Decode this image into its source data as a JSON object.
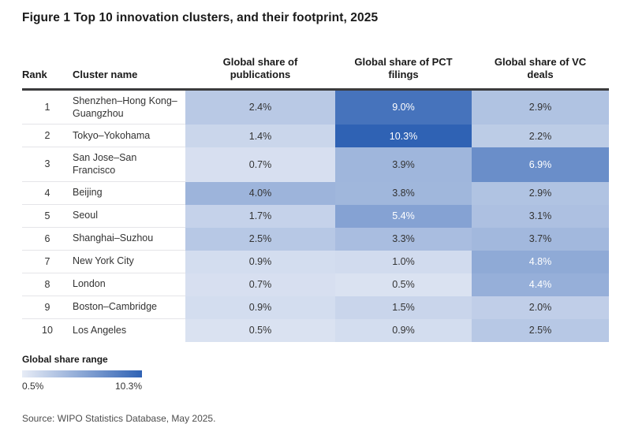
{
  "title": "Figure 1 Top 10 innovation clusters, and their footprint, 2025",
  "legend": {
    "title": "Global share range",
    "min_label": "0.5%",
    "max_label": "10.3%"
  },
  "source": "Source: WIPO Statistics Database, May 2025.",
  "heatmap": {
    "domain": [
      0.5,
      10.3
    ],
    "light_color": "#dae2f1",
    "dark_color": "#2f62b4",
    "white_text_threshold": 4.2,
    "rule_color": "#3b3b3d"
  },
  "chart_data": {
    "type": "heatmap",
    "title": "Figure 1 Top 10 innovation clusters, and their footprint, 2025",
    "columns": [
      "Rank",
      "Cluster name",
      "Global share of publications",
      "Global share of PCT filings",
      "Global share of VC deals"
    ],
    "color_scale": {
      "min": 0.5,
      "max": 10.3,
      "min_color": "#dae2f1",
      "max_color": "#2f62b4"
    },
    "rows": [
      {
        "rank": "1",
        "cluster": "Shenzhen–Hong Kong–Guangzhou",
        "values": [
          2.4,
          9.0,
          2.9
        ],
        "labels": [
          "2.4%",
          "9.0%",
          "2.9%"
        ]
      },
      {
        "rank": "2",
        "cluster": "Tokyo–Yokohama",
        "values": [
          1.4,
          10.3,
          2.2
        ],
        "labels": [
          "1.4%",
          "10.3%",
          "2.2%"
        ]
      },
      {
        "rank": "3",
        "cluster": "San Jose–San Francisco",
        "values": [
          0.7,
          3.9,
          6.9
        ],
        "labels": [
          "0.7%",
          "3.9%",
          "6.9%"
        ]
      },
      {
        "rank": "4",
        "cluster": "Beijing",
        "values": [
          4.0,
          3.8,
          2.9
        ],
        "labels": [
          "4.0%",
          "3.8%",
          "2.9%"
        ]
      },
      {
        "rank": "5",
        "cluster": "Seoul",
        "values": [
          1.7,
          5.4,
          3.1
        ],
        "labels": [
          "1.7%",
          "5.4%",
          "3.1%"
        ]
      },
      {
        "rank": "6",
        "cluster": "Shanghai–Suzhou",
        "values": [
          2.5,
          3.3,
          3.7
        ],
        "labels": [
          "2.5%",
          "3.3%",
          "3.7%"
        ]
      },
      {
        "rank": "7",
        "cluster": "New York City",
        "values": [
          0.9,
          1.0,
          4.8
        ],
        "labels": [
          "0.9%",
          "1.0%",
          "4.8%"
        ]
      },
      {
        "rank": "8",
        "cluster": "London",
        "values": [
          0.7,
          0.5,
          4.4
        ],
        "labels": [
          "0.7%",
          "0.5%",
          "4.4%"
        ]
      },
      {
        "rank": "9",
        "cluster": "Boston–Cambridge",
        "values": [
          0.9,
          1.5,
          2.0
        ],
        "labels": [
          "0.9%",
          "1.5%",
          "2.0%"
        ]
      },
      {
        "rank": "10",
        "cluster": "Los Angeles",
        "values": [
          0.5,
          0.9,
          2.5
        ],
        "labels": [
          "0.5%",
          "0.9%",
          "2.5%"
        ]
      }
    ]
  }
}
